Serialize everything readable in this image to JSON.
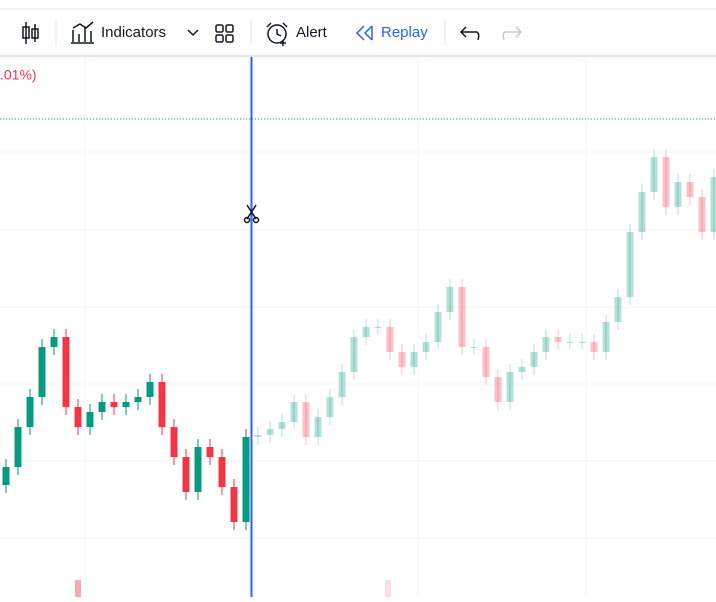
{
  "toolbar": {
    "indicators": "Indicators",
    "alert": "Alert",
    "replay": "Replay"
  },
  "chart_data": {
    "type": "candlestick",
    "annotation": ".01%)",
    "open": [
      28,
      32.5,
      42.5,
      50,
      62.5,
      65,
      47.5,
      42.5,
      46.25,
      48.75,
      47.5,
      48.75,
      50,
      53.75,
      42.5,
      35,
      26.25,
      37.5,
      35,
      27.5,
      18.75,
      40,
      40.5,
      42,
      43.75,
      48.75,
      40,
      45,
      50,
      56.25,
      65,
      67.5,
      67.5,
      61.25,
      57.5,
      61.25,
      63.75,
      71.25,
      77.5,
      62.5,
      62.5,
      55,
      48.75,
      56.25,
      57.5,
      61.25,
      65,
      63.75,
      63.75,
      63.75,
      61.25,
      68.75,
      75,
      91.25,
      101.25,
      110,
      97.5,
      103.75,
      100,
      91.25
    ],
    "high": [
      34.5,
      44.5,
      52,
      64.5,
      67,
      67,
      49.5,
      48.25,
      50.75,
      50.75,
      50.75,
      52,
      55.75,
      55.75,
      44.5,
      37,
      39.5,
      39.5,
      37,
      29.5,
      42,
      42.5,
      44,
      45.75,
      50.75,
      50.75,
      47,
      52,
      58.25,
      67,
      69.5,
      69.5,
      69.5,
      63.25,
      63.25,
      65.75,
      73.25,
      79.5,
      79.5,
      64.5,
      64.5,
      57,
      58.25,
      59.5,
      63.25,
      67,
      67,
      65.75,
      65.75,
      65.75,
      70.75,
      77,
      93.25,
      103.25,
      112,
      112,
      105.75,
      105.75,
      102,
      107
    ],
    "low": [
      26,
      30.5,
      40.5,
      48,
      60.5,
      45.5,
      40.5,
      40.5,
      44.25,
      45.5,
      45.5,
      46.75,
      48,
      40.5,
      33,
      24.25,
      24.25,
      33,
      25.5,
      16.75,
      16.75,
      38,
      38.5,
      40,
      41.75,
      38,
      38,
      43,
      48,
      54.25,
      63,
      65.5,
      59.25,
      55.5,
      55.5,
      59.25,
      61.75,
      69.25,
      60.5,
      60.5,
      53,
      46.75,
      46.75,
      54.25,
      55.5,
      59.25,
      61.75,
      61.75,
      61.75,
      59.25,
      59.25,
      66.75,
      73,
      89.25,
      99.25,
      95.5,
      95.5,
      98,
      89.25,
      89.25
    ],
    "close": [
      32.5,
      42.5,
      50,
      62.5,
      65,
      47.5,
      42.5,
      46.25,
      48.75,
      47.5,
      48.75,
      50,
      53.75,
      42.5,
      35,
      26.25,
      37.5,
      35,
      27.5,
      18.75,
      40,
      40.5,
      42,
      43.75,
      48.75,
      40,
      45,
      50,
      56.25,
      65,
      67.5,
      67.5,
      61.25,
      57.5,
      61.25,
      63.75,
      71.25,
      77.5,
      62.5,
      62.5,
      55,
      48.75,
      56.25,
      57.5,
      61.25,
      65,
      63.75,
      63.75,
      63.75,
      61.25,
      68.75,
      75,
      91.25,
      101.25,
      110,
      97.5,
      103.75,
      100,
      91.25,
      105
    ],
    "ylim": [
      0,
      135
    ],
    "up_color": "#089981",
    "down_color": "#f23645"
  }
}
